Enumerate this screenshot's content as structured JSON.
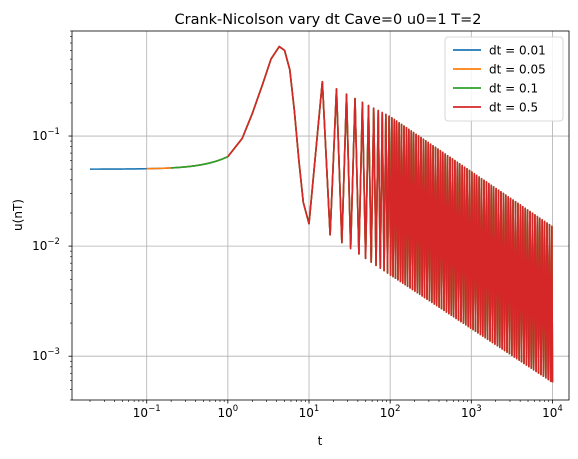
{
  "chart_data": {
    "type": "line",
    "title": "Crank-Nicolson vary dt Cave=0 u0=1 T=2",
    "xlabel": "t",
    "ylabel": "u(nT)",
    "xscale": "log",
    "yscale": "log",
    "xlim": [
      0.012,
      16000
    ],
    "ylim": [
      0.0004,
      0.9
    ],
    "grid": true,
    "legend_position": "top-right",
    "x_ticks": [
      {
        "value": 0.1,
        "base": "10",
        "exp": "−1"
      },
      {
        "value": 1,
        "base": "10",
        "exp": "0"
      },
      {
        "value": 10,
        "base": "10",
        "exp": "1"
      },
      {
        "value": 100,
        "base": "10",
        "exp": "2"
      },
      {
        "value": 1000,
        "base": "10",
        "exp": "3"
      },
      {
        "value": 10000,
        "base": "10",
        "exp": "4"
      }
    ],
    "y_ticks": [
      {
        "value": 0.001,
        "base": "10",
        "exp": "−3"
      },
      {
        "value": 0.01,
        "base": "10",
        "exp": "−2"
      },
      {
        "value": 0.1,
        "base": "10",
        "exp": "−1"
      }
    ],
    "series": [
      {
        "name": "dt = 0.01",
        "color": "#1f77b4",
        "x_start": 0.02,
        "initial_value": 0.05
      },
      {
        "name": "dt = 0.05",
        "color": "#ff7f0e",
        "x_start": 0.1,
        "initial_value": 0.05
      },
      {
        "name": "dt = 0.1",
        "color": "#2ca02c",
        "x_start": 0.2,
        "initial_value": 0.051
      },
      {
        "name": "dt = 0.5",
        "color": "#d62728",
        "x_start": 1,
        "initial_value": 0.065
      }
    ],
    "envelope": {
      "x_end": 10000,
      "upper_end": 0.015,
      "lower_end": 0.00058,
      "peak_x": 4.3,
      "peak_y": 0.65
    }
  }
}
